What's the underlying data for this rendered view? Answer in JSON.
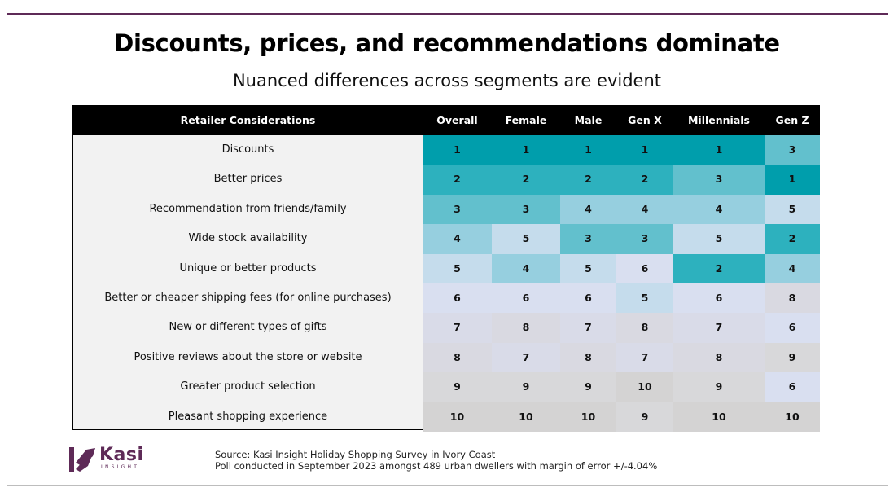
{
  "title": "Discounts, prices, and recommendations dominate",
  "subtitle": "Nuanced differences across segments are evident",
  "chart_data": {
    "type": "table",
    "header_label": "Retailer Considerations",
    "columns": [
      "Overall",
      "Female",
      "Male",
      "Gen X",
      "Millennials",
      "Gen Z"
    ],
    "rows": [
      {
        "label": "Discounts",
        "values": [
          1,
          1,
          1,
          1,
          1,
          3
        ]
      },
      {
        "label": "Better prices",
        "values": [
          2,
          2,
          2,
          2,
          3,
          1
        ]
      },
      {
        "label": "Recommendation from friends/family",
        "values": [
          3,
          3,
          4,
          4,
          4,
          5
        ]
      },
      {
        "label": "Wide stock availability",
        "values": [
          4,
          5,
          3,
          3,
          5,
          2
        ]
      },
      {
        "label": "Unique or better products",
        "values": [
          5,
          4,
          5,
          6,
          2,
          4
        ]
      },
      {
        "label": "Better or cheaper shipping fees (for online purchases)",
        "values": [
          6,
          6,
          6,
          5,
          6,
          8
        ]
      },
      {
        "label": "New or different types of gifts",
        "values": [
          7,
          8,
          7,
          8,
          7,
          6
        ]
      },
      {
        "label": "Positive reviews about the store or website",
        "values": [
          8,
          7,
          8,
          7,
          8,
          9
        ]
      },
      {
        "label": "Greater product selection",
        "values": [
          9,
          9,
          9,
          10,
          9,
          6
        ]
      },
      {
        "label": "Pleasant shopping experience",
        "values": [
          10,
          10,
          10,
          9,
          10,
          10
        ]
      }
    ],
    "rank_colors": {
      "1": "#009eac",
      "2": "#2db1be",
      "3": "#62c0cd",
      "4": "#96cfdf",
      "5": "#c5dcec",
      "6": "#d9dff0",
      "7": "#d9dbe8",
      "8": "#d9d9e1",
      "9": "#d8d8da",
      "10": "#d4d3d3"
    }
  },
  "logo": {
    "name": "Kasi",
    "tagline": "INSIGHT"
  },
  "source_line1": "Source: Kasi Insight Holiday Shopping Survey in Ivory Coast",
  "source_line2": "Poll conducted  in September 2023 amongst 489 urban dwellers with margin of error +/-4.04%",
  "colors": {
    "brand": "#5e2a57",
    "header_bg": "#000000",
    "label_bg": "#f2f2f2"
  }
}
